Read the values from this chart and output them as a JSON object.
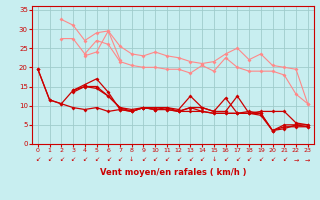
{
  "bg_color": "#c8eef0",
  "grid_color": "#a0cccc",
  "line_color_dark": "#cc0000",
  "line_color_light": "#ff8888",
  "xlabel": "Vent moyen/en rafales ( km/h )",
  "xlabel_color": "#cc0000",
  "tick_color": "#cc0000",
  "xlim": [
    -0.5,
    23.5
  ],
  "ylim": [
    0,
    36
  ],
  "yticks": [
    0,
    5,
    10,
    15,
    20,
    25,
    30,
    35
  ],
  "xticks": [
    0,
    1,
    2,
    3,
    4,
    5,
    6,
    7,
    8,
    9,
    10,
    11,
    12,
    13,
    14,
    15,
    16,
    17,
    18,
    19,
    20,
    21,
    22,
    23
  ],
  "lines_dark": [
    [
      19.5,
      11.5,
      10.5,
      9.5,
      9.0,
      9.5,
      8.5,
      9.0,
      8.5,
      9.5,
      9.0,
      9.0,
      8.5,
      8.5,
      8.5,
      8.0,
      8.0,
      8.0,
      8.0,
      7.5,
      3.5,
      4.5,
      4.5,
      4.5
    ],
    [
      19.5,
      11.5,
      10.5,
      14.0,
      15.5,
      17.0,
      13.5,
      9.0,
      8.5,
      9.5,
      9.0,
      9.5,
      9.0,
      12.5,
      9.5,
      8.5,
      12.0,
      8.0,
      8.5,
      8.0,
      3.5,
      5.0,
      5.0,
      5.0
    ],
    [
      null,
      null,
      null,
      14.0,
      15.0,
      15.0,
      12.5,
      9.5,
      9.0,
      9.5,
      9.5,
      9.5,
      8.5,
      9.5,
      9.5,
      8.5,
      8.5,
      12.5,
      8.0,
      8.5,
      8.5,
      8.5,
      5.5,
      5.0
    ],
    [
      null,
      null,
      null,
      13.5,
      15.0,
      14.5,
      12.5,
      9.5,
      8.5,
      9.5,
      9.0,
      9.0,
      8.5,
      9.5,
      8.5,
      8.0,
      8.0,
      8.0,
      8.0,
      8.0,
      3.5,
      4.0,
      5.0,
      4.5
    ]
  ],
  "lines_light": [
    [
      null,
      null,
      32.5,
      31.0,
      27.0,
      29.0,
      29.5,
      25.5,
      23.5,
      23.0,
      24.0,
      23.0,
      22.5,
      21.5,
      21.0,
      21.5,
      23.5,
      25.0,
      22.0,
      23.5,
      20.5,
      20.0,
      19.5,
      10.5
    ],
    [
      null,
      null,
      27.5,
      27.5,
      23.5,
      27.0,
      26.0,
      21.5,
      20.5,
      20.0,
      20.0,
      19.5,
      19.5,
      18.5,
      20.5,
      19.0,
      22.5,
      20.0,
      19.0,
      19.0,
      19.0,
      18.0,
      13.0,
      10.5
    ],
    [
      null,
      null,
      null,
      null,
      23.0,
      24.0,
      29.5,
      22.0,
      null,
      null,
      null,
      null,
      null,
      null,
      null,
      null,
      null,
      null,
      null,
      null,
      null,
      null,
      null,
      null
    ]
  ],
  "arrows": [
    "↙",
    "↙",
    "↙",
    "↙",
    "↙",
    "↙",
    "↙",
    "↙",
    "↓",
    "↙",
    "↙",
    "↙",
    "↙",
    "↙",
    "↙",
    "↓",
    "↙",
    "↙",
    "↙",
    "↙",
    "↙",
    "↙",
    "→",
    "→"
  ]
}
